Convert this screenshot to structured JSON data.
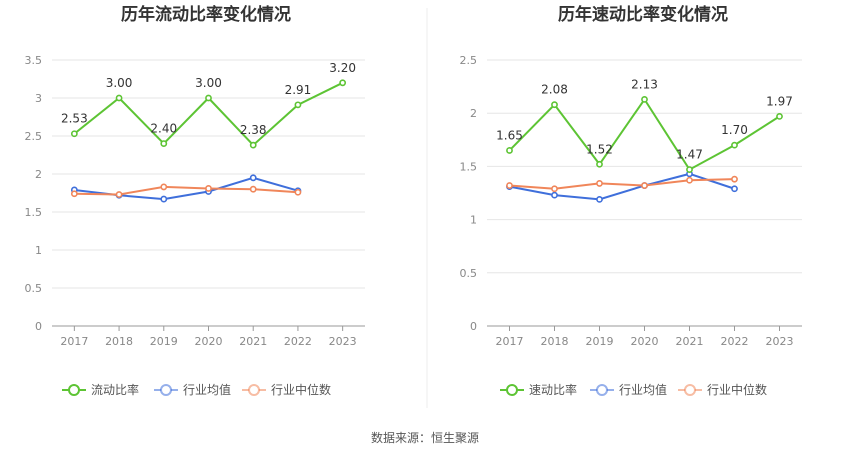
{
  "source": "数据来源：恒生聚源",
  "colors": {
    "main": "#5dc434",
    "industry_avg": "#3f6fdb",
    "industry_median": "#f0865a"
  },
  "chart_data": [
    {
      "type": "line",
      "title": "历年流动比率变化情况",
      "categories": [
        "2017",
        "2018",
        "2019",
        "2020",
        "2021",
        "2022",
        "2023"
      ],
      "ylim": [
        0,
        3.5
      ],
      "yticks": [
        "0",
        "0.5",
        "1",
        "1.5",
        "2",
        "2.5",
        "3",
        "3.5"
      ],
      "grid": true,
      "legend_position": "bottom",
      "series": [
        {
          "name": "流动比率",
          "key": "main",
          "values": [
            2.53,
            3.0,
            2.4,
            3.0,
            2.38,
            2.91,
            3.2
          ],
          "labels": [
            "2.53",
            "3.00",
            "2.40",
            "3.00",
            "2.38",
            "2.91",
            "3.20"
          ]
        },
        {
          "name": "行业均值",
          "key": "industry_avg",
          "values": [
            1.79,
            1.72,
            1.67,
            1.77,
            1.95,
            1.78,
            null
          ]
        },
        {
          "name": "行业中位数",
          "key": "industry_median",
          "values": [
            1.74,
            1.73,
            1.83,
            1.81,
            1.8,
            1.76,
            null
          ]
        }
      ]
    },
    {
      "type": "line",
      "title": "历年速动比率变化情况",
      "categories": [
        "2017",
        "2018",
        "2019",
        "2020",
        "2021",
        "2022",
        "2023"
      ],
      "ylim": [
        0,
        2.5
      ],
      "yticks": [
        "0",
        "0.5",
        "1",
        "1.5",
        "2",
        "2.5"
      ],
      "grid": true,
      "legend_position": "bottom",
      "series": [
        {
          "name": "速动比率",
          "key": "main",
          "values": [
            1.65,
            2.08,
            1.52,
            2.13,
            1.47,
            1.7,
            1.97
          ],
          "labels": [
            "1.65",
            "2.08",
            "1.52",
            "2.13",
            "1.47",
            "1.70",
            "1.97"
          ]
        },
        {
          "name": "行业均值",
          "key": "industry_avg",
          "values": [
            1.31,
            1.23,
            1.19,
            1.32,
            1.43,
            1.29,
            null
          ]
        },
        {
          "name": "行业中位数",
          "key": "industry_median",
          "values": [
            1.32,
            1.29,
            1.34,
            1.32,
            1.37,
            1.38,
            null
          ]
        }
      ]
    }
  ]
}
